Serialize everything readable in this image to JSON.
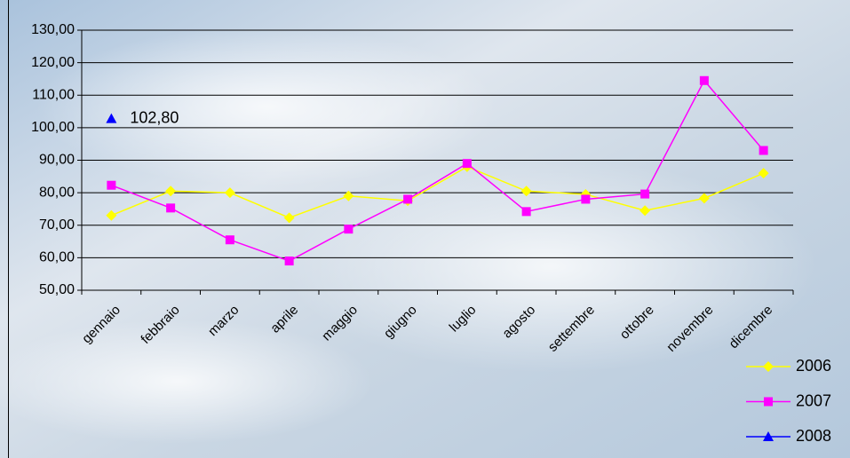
{
  "chart_data": {
    "type": "line",
    "categories": [
      "gennaio",
      "febbraio",
      "marzo",
      "aprile",
      "maggio",
      "giugno",
      "luglio",
      "agosto",
      "settembre",
      "ottobre",
      "novembre",
      "dicembre"
    ],
    "series": [
      {
        "name": "2006",
        "color": "#ffff00",
        "marker": "diamond",
        "values": [
          73,
          80.5,
          80,
          72.3,
          79,
          77.5,
          88,
          80.5,
          79.5,
          74.5,
          78.3,
          86
        ]
      },
      {
        "name": "2007",
        "color": "#ff00ff",
        "marker": "square",
        "values": [
          82.3,
          75.3,
          65.5,
          59,
          68.8,
          78,
          89,
          74.2,
          78,
          79.6,
          114.5,
          93
        ]
      },
      {
        "name": "2008",
        "color": "#0000ff",
        "marker": "triangle",
        "values": [
          102.8,
          null,
          null,
          null,
          null,
          null,
          null,
          null,
          null,
          null,
          null,
          null
        ],
        "value_labels": [
          "102,80",
          null,
          null,
          null,
          null,
          null,
          null,
          null,
          null,
          null,
          null,
          null
        ]
      }
    ],
    "ylim": [
      50,
      130
    ],
    "yticks": [
      {
        "value": 50,
        "label": "50,00"
      },
      {
        "value": 60,
        "label": "60,00"
      },
      {
        "value": 70,
        "label": "70,00"
      },
      {
        "value": 80,
        "label": "80,00"
      },
      {
        "value": 90,
        "label": "90,00"
      },
      {
        "value": 100,
        "label": "100,00"
      },
      {
        "value": 110,
        "label": "110,00"
      },
      {
        "value": 120,
        "label": "120,00"
      },
      {
        "value": 130,
        "label": "130,00"
      }
    ],
    "grid": true,
    "legend": "bottom-right"
  }
}
